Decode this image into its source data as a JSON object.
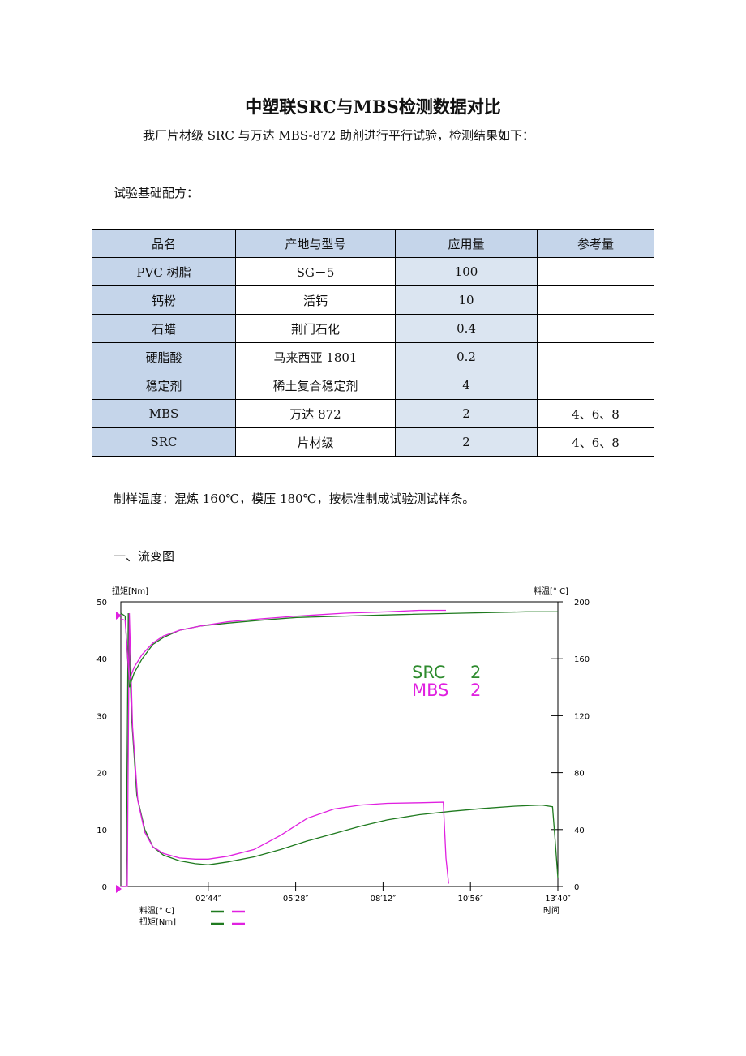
{
  "doc": {
    "title": "中塑联SRC与MBS检测数据对比",
    "intro": "我厂片材级 SRC 与万达 MBS-872 助剂进行平行试验，检测结果如下：",
    "formula_heading": "试验基础配方：",
    "sample_prep": "制样温度：混炼 160℃，模压 180℃，按标准制成试验测试样条。",
    "section1": "一、流变图"
  },
  "table": {
    "headers": [
      "品名",
      "产地与型号",
      "应用量",
      "参考量"
    ],
    "rows": [
      {
        "name": "PVC 树脂",
        "origin": "SG－5",
        "amount": "100",
        "ref": ""
      },
      {
        "name": "钙粉",
        "origin": "活钙",
        "amount": "10",
        "ref": ""
      },
      {
        "name": "石蜡",
        "origin": "荆门石化",
        "amount": "0.4",
        "ref": ""
      },
      {
        "name": "硬脂酸",
        "origin": "马来西亚 1801",
        "amount": "0.2",
        "ref": ""
      },
      {
        "name": "稳定剂",
        "origin": "稀土复合稳定剂",
        "amount": "4",
        "ref": ""
      },
      {
        "name": "MBS",
        "origin": "万达 872",
        "amount": "2",
        "ref": "4、6、8"
      },
      {
        "name": "SRC",
        "origin": "片材级",
        "amount": "2",
        "ref": "4、6、8"
      }
    ]
  },
  "chart_data": {
    "type": "line",
    "left_axis_label": "扭矩[Nm]",
    "right_axis_label": "料温[° C]",
    "x_axis_label": "时间",
    "x_ticks": [
      "02′44″",
      "05′28″",
      "08′12″",
      "10′56″",
      "13′40″"
    ],
    "x_tick_seconds": [
      164,
      328,
      492,
      656,
      820
    ],
    "xlim_seconds": [
      0,
      820
    ],
    "y_left_ticks": [
      "0",
      "10",
      "20",
      "30",
      "40",
      "50"
    ],
    "y_left_lim": [
      0,
      50
    ],
    "y_right_ticks": [
      "0",
      "40",
      "80",
      "120",
      "160",
      "200"
    ],
    "y_right_lim": [
      0,
      200
    ],
    "footer_legend": [
      "料温[° C]",
      "扭矩[Nm]"
    ],
    "legend": [
      {
        "name": "SRC",
        "value": "2",
        "color": "#2e8b2e"
      },
      {
        "name": "MBS",
        "value": "2",
        "color": "#e020e0"
      }
    ],
    "series": [
      {
        "name": "SRC",
        "kind": "torque",
        "axis": "left",
        "color": "#1f7a1f",
        "x": [
          0,
          10,
          14,
          20,
          30,
          45,
          60,
          80,
          110,
          140,
          164,
          200,
          250,
          300,
          350,
          400,
          450,
          500,
          560,
          620,
          680,
          740,
          790,
          810,
          815,
          820
        ],
        "y": [
          0,
          0,
          48,
          30,
          16,
          10,
          7,
          5.5,
          4.5,
          4,
          3.8,
          4.3,
          5.2,
          6.5,
          8,
          9.3,
          10.6,
          11.7,
          12.6,
          13.2,
          13.7,
          14.1,
          14.3,
          14,
          8,
          1.5
        ]
      },
      {
        "name": "MBS",
        "kind": "torque",
        "axis": "left",
        "color": "#e020e0",
        "x": [
          0,
          12,
          16,
          22,
          32,
          45,
          60,
          80,
          110,
          140,
          164,
          200,
          250,
          300,
          350,
          400,
          450,
          500,
          560,
          605,
          610,
          615
        ],
        "y": [
          0,
          0,
          48,
          28,
          15,
          9.5,
          7,
          5.8,
          5,
          4.8,
          4.8,
          5.3,
          6.5,
          9,
          12,
          13.6,
          14.3,
          14.6,
          14.7,
          14.8,
          5,
          0.5
        ]
      },
      {
        "name": "SRC",
        "kind": "temperature",
        "axis": "right",
        "color": "#1f7a1f",
        "x": [
          0,
          8,
          16,
          25,
          40,
          60,
          80,
          110,
          150,
          200,
          260,
          330,
          420,
          520,
          640,
          760,
          820
        ],
        "y": [
          192,
          190,
          140,
          150,
          160,
          170,
          175,
          180,
          183,
          185,
          187,
          189,
          190,
          191,
          192,
          193,
          193
        ]
      },
      {
        "name": "MBS",
        "kind": "temperature",
        "axis": "right",
        "color": "#e020e0",
        "x": [
          0,
          8,
          16,
          25,
          40,
          60,
          80,
          110,
          150,
          200,
          260,
          330,
          420,
          500,
          560,
          610
        ],
        "y": [
          188,
          187,
          145,
          154,
          163,
          171,
          176,
          180,
          183,
          186,
          188,
          190,
          192,
          193,
          194,
          194
        ]
      }
    ]
  }
}
